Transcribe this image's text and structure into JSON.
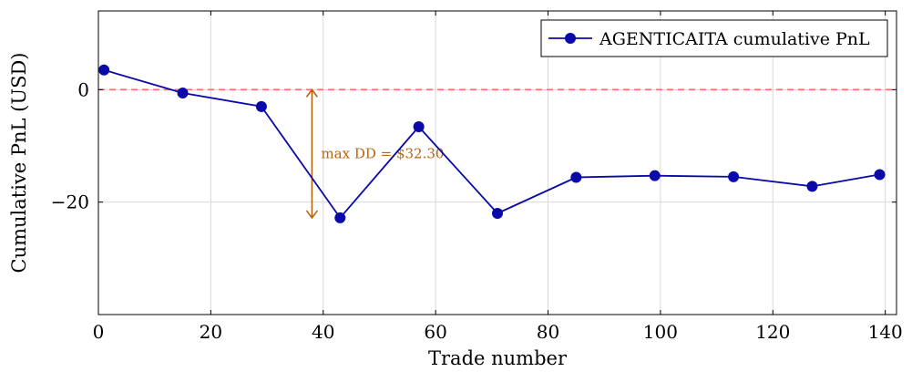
{
  "chart_data": {
    "type": "line",
    "xlabel": "Trade number",
    "ylabel": "Cumulative PnL (USD)",
    "xlim": [
      0,
      142
    ],
    "ylim": [
      -40,
      14
    ],
    "xticks": [
      0,
      20,
      40,
      60,
      80,
      100,
      120,
      140
    ],
    "yticks": [
      0,
      -20
    ],
    "ytick_labels": [
      "0",
      "−20"
    ],
    "grid": true,
    "legend_position": "top-right",
    "series": [
      {
        "name": "AGENTICAITA cumulative PnL",
        "color": "#0a0aa8",
        "x": [
          1,
          15,
          29,
          43,
          57,
          71,
          85,
          99,
          113,
          127,
          139
        ],
        "y": [
          3.5,
          -0.6,
          -3.0,
          -22.8,
          -6.6,
          -22.0,
          -15.6,
          -15.3,
          -15.5,
          -17.2,
          -15.1
        ]
      }
    ],
    "reference_line": {
      "y": 0,
      "color": "#ff6b6b",
      "style": "dashed"
    },
    "annotation": {
      "text": "max DD = $32.30",
      "x": 38,
      "y_top": 0,
      "y_bottom": -22.8,
      "color": "#b5650f"
    }
  }
}
